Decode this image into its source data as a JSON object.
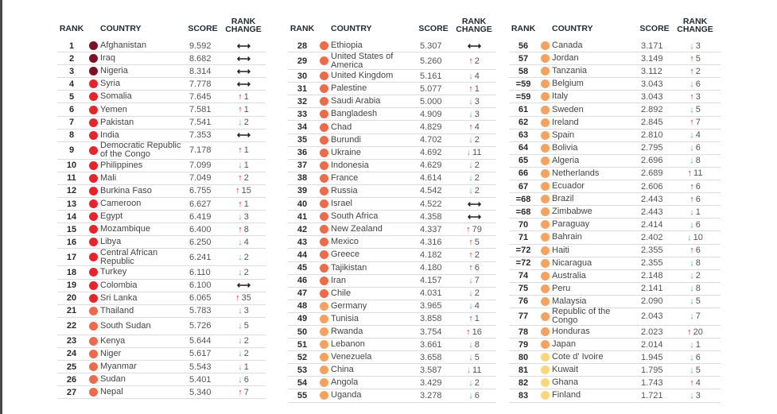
{
  "headers": {
    "rank": "RANK",
    "country": "COUNTRY",
    "score": "SCORE",
    "change_line1": "RANK",
    "change_line2": "CHANGE"
  },
  "colors": {
    "level1": "#7b1123",
    "level2": "#e8232a",
    "level3": "#ef6a4a",
    "level4": "#f6a25e",
    "level5": "#fbd77a",
    "up": "#e0262b",
    "down": "#4fb39a"
  },
  "icons": {
    "up": "up-arrow-icon",
    "down": "down-arrow-icon",
    "same": "no-change-icon"
  },
  "panels": [
    {
      "rows": [
        {
          "rank": "1",
          "country": "Afghanistan",
          "score": "9.592",
          "dir": "same",
          "change": "",
          "level": "level1"
        },
        {
          "rank": "2",
          "country": "Iraq",
          "score": "8.682",
          "dir": "same",
          "change": "",
          "level": "level1"
        },
        {
          "rank": "3",
          "country": "Nigeria",
          "score": "8.314",
          "dir": "same",
          "change": "",
          "level": "level1"
        },
        {
          "rank": "4",
          "country": "Syria",
          "score": "7.778",
          "dir": "same",
          "change": "",
          "level": "level2"
        },
        {
          "rank": "5",
          "country": "Somalia",
          "score": "7.645",
          "dir": "up",
          "change": "1",
          "level": "level2"
        },
        {
          "rank": "6",
          "country": "Yemen",
          "score": "7.581",
          "dir": "up",
          "change": "1",
          "level": "level2"
        },
        {
          "rank": "7",
          "country": "Pakistan",
          "score": "7.541",
          "dir": "down",
          "change": "2",
          "level": "level2"
        },
        {
          "rank": "8",
          "country": "India",
          "score": "7.353",
          "dir": "same",
          "change": "",
          "level": "level2"
        },
        {
          "rank": "9",
          "country": "Democratic Republic of the Congo",
          "score": "7.178",
          "dir": "up",
          "change": "1",
          "level": "level2",
          "tall": true
        },
        {
          "rank": "10",
          "country": "Philippines",
          "score": "7.099",
          "dir": "down",
          "change": "1",
          "level": "level2"
        },
        {
          "rank": "11",
          "country": "Mali",
          "score": "7.049",
          "dir": "up",
          "change": "2",
          "level": "level2"
        },
        {
          "rank": "12",
          "country": "Burkina Faso",
          "score": "6.755",
          "dir": "up",
          "change": "15",
          "level": "level2"
        },
        {
          "rank": "13",
          "country": "Cameroon",
          "score": "6.627",
          "dir": "up",
          "change": "1",
          "level": "level2"
        },
        {
          "rank": "14",
          "country": "Egypt",
          "score": "6.419",
          "dir": "down",
          "change": "3",
          "level": "level2"
        },
        {
          "rank": "15",
          "country": "Mozambique",
          "score": "6.400",
          "dir": "up",
          "change": "8",
          "level": "level2"
        },
        {
          "rank": "16",
          "country": "Libya",
          "score": "6.250",
          "dir": "down",
          "change": "4",
          "level": "level2"
        },
        {
          "rank": "17",
          "country": "Central African Republic",
          "score": "6.241",
          "dir": "down",
          "change": "2",
          "level": "level2",
          "tall": true
        },
        {
          "rank": "18",
          "country": "Turkey",
          "score": "6.110",
          "dir": "down",
          "change": "2",
          "level": "level2"
        },
        {
          "rank": "19",
          "country": "Colombia",
          "score": "6.100",
          "dir": "same",
          "change": "",
          "level": "level2"
        },
        {
          "rank": "20",
          "country": "Sri Lanka",
          "score": "6.065",
          "dir": "up",
          "change": "35",
          "level": "level2"
        },
        {
          "rank": "21",
          "country": "Thailand",
          "score": "5.783",
          "dir": "down",
          "change": "3",
          "level": "level3"
        },
        {
          "rank": "22",
          "country": "South Sudan",
          "score": "5.726",
          "dir": "down",
          "change": "5",
          "level": "level3",
          "tall": true
        },
        {
          "rank": "23",
          "country": "Kenya",
          "score": "5.644",
          "dir": "down",
          "change": "2",
          "level": "level3"
        },
        {
          "rank": "24",
          "country": "Niger",
          "score": "5.617",
          "dir": "down",
          "change": "2",
          "level": "level3"
        },
        {
          "rank": "25",
          "country": "Myanmar",
          "score": "5.543",
          "dir": "down",
          "change": "1",
          "level": "level3"
        },
        {
          "rank": "26",
          "country": "Sudan",
          "score": "5.401",
          "dir": "down",
          "change": "6",
          "level": "level3"
        },
        {
          "rank": "27",
          "country": "Nepal",
          "score": "5.340",
          "dir": "up",
          "change": "7",
          "level": "level3"
        }
      ]
    },
    {
      "rows": [
        {
          "rank": "28",
          "country": "Ethiopia",
          "score": "5.307",
          "dir": "same",
          "change": "",
          "level": "level3"
        },
        {
          "rank": "29",
          "country": "United States of America",
          "score": "5.260",
          "dir": "up",
          "change": "2",
          "level": "level3",
          "tall": true
        },
        {
          "rank": "30",
          "country": "United Kingdom",
          "score": "5.161",
          "dir": "down",
          "change": "4",
          "level": "level3"
        },
        {
          "rank": "31",
          "country": "Palestine",
          "score": "5.077",
          "dir": "up",
          "change": "1",
          "level": "level3"
        },
        {
          "rank": "32",
          "country": "Saudi Arabia",
          "score": "5.000",
          "dir": "down",
          "change": "3",
          "level": "level3"
        },
        {
          "rank": "33",
          "country": "Bangladesh",
          "score": "4.909",
          "dir": "down",
          "change": "3",
          "level": "level3"
        },
        {
          "rank": "34",
          "country": "Chad",
          "score": "4.829",
          "dir": "up",
          "change": "4",
          "level": "level3"
        },
        {
          "rank": "35",
          "country": "Burundi",
          "score": "4.702",
          "dir": "down",
          "change": "2",
          "level": "level3"
        },
        {
          "rank": "36",
          "country": "Ukraine",
          "score": "4.692",
          "dir": "down",
          "change": "11",
          "level": "level3"
        },
        {
          "rank": "37",
          "country": "Indonesia",
          "score": "4.629",
          "dir": "down",
          "change": "2",
          "level": "level3"
        },
        {
          "rank": "38",
          "country": "France",
          "score": "4.614",
          "dir": "down",
          "change": "2",
          "level": "level3"
        },
        {
          "rank": "39",
          "country": "Russia",
          "score": "4.542",
          "dir": "down",
          "change": "2",
          "level": "level3"
        },
        {
          "rank": "40",
          "country": "Israel",
          "score": "4.522",
          "dir": "same",
          "change": "",
          "level": "level3"
        },
        {
          "rank": "41",
          "country": "South Africa",
          "score": "4.358",
          "dir": "same",
          "change": "",
          "level": "level3"
        },
        {
          "rank": "42",
          "country": "New Zealand",
          "score": "4.337",
          "dir": "up",
          "change": "79",
          "level": "level3"
        },
        {
          "rank": "43",
          "country": "Mexico",
          "score": "4.316",
          "dir": "up",
          "change": "5",
          "level": "level3"
        },
        {
          "rank": "44",
          "country": "Greece",
          "score": "4.182",
          "dir": "up",
          "change": "2",
          "level": "level3"
        },
        {
          "rank": "45",
          "country": "Tajikistan",
          "score": "4.180",
          "dir": "up",
          "change": "6",
          "level": "level3"
        },
        {
          "rank": "46",
          "country": "Iran",
          "score": "4.157",
          "dir": "down",
          "change": "7",
          "level": "level3"
        },
        {
          "rank": "47",
          "country": "Chile",
          "score": "4.031",
          "dir": "down",
          "change": "2",
          "level": "level3"
        },
        {
          "rank": "48",
          "country": "Germany",
          "score": "3.965",
          "dir": "down",
          "change": "4",
          "level": "level4"
        },
        {
          "rank": "49",
          "country": "Tunisia",
          "score": "3.858",
          "dir": "up",
          "change": "1",
          "level": "level4"
        },
        {
          "rank": "50",
          "country": "Rwanda",
          "score": "3.754",
          "dir": "up",
          "change": "16",
          "level": "level4"
        },
        {
          "rank": "51",
          "country": "Lebanon",
          "score": "3.661",
          "dir": "down",
          "change": "8",
          "level": "level4"
        },
        {
          "rank": "52",
          "country": "Venezuela",
          "score": "3.658",
          "dir": "down",
          "change": "5",
          "level": "level4"
        },
        {
          "rank": "53",
          "country": "China",
          "score": "3.587",
          "dir": "down",
          "change": "11",
          "level": "level4"
        },
        {
          "rank": "54",
          "country": "Angola",
          "score": "3.429",
          "dir": "down",
          "change": "2",
          "level": "level4"
        },
        {
          "rank": "55",
          "country": "Uganda",
          "score": "3.278",
          "dir": "down",
          "change": "6",
          "level": "level4"
        }
      ]
    },
    {
      "rows": [
        {
          "rank": "56",
          "country": "Canada",
          "score": "3.171",
          "dir": "down",
          "change": "3",
          "level": "level4"
        },
        {
          "rank": "57",
          "country": "Jordan",
          "score": "3.149",
          "dir": "up",
          "change": "5",
          "level": "level4"
        },
        {
          "rank": "58",
          "country": "Tanzania",
          "score": "3.112",
          "dir": "up",
          "change": "2",
          "level": "level4"
        },
        {
          "rank": "=59",
          "country": "Belgium",
          "score": "3.043",
          "dir": "down",
          "change": "6",
          "level": "level4"
        },
        {
          "rank": "=59",
          "country": "Italy",
          "score": "3.043",
          "dir": "up",
          "change": "3",
          "level": "level4"
        },
        {
          "rank": "61",
          "country": "Sweden",
          "score": "2.892",
          "dir": "down",
          "change": "5",
          "level": "level4"
        },
        {
          "rank": "62",
          "country": "Ireland",
          "score": "2.845",
          "dir": "up",
          "change": "7",
          "level": "level4"
        },
        {
          "rank": "63",
          "country": "Spain",
          "score": "2.810",
          "dir": "down",
          "change": "4",
          "level": "level4"
        },
        {
          "rank": "64",
          "country": "Bolivia",
          "score": "2.795",
          "dir": "down",
          "change": "6",
          "level": "level4"
        },
        {
          "rank": "65",
          "country": "Algeria",
          "score": "2.696",
          "dir": "down",
          "change": "8",
          "level": "level4"
        },
        {
          "rank": "66",
          "country": "Netherlands",
          "score": "2.689",
          "dir": "up",
          "change": "11",
          "level": "level4"
        },
        {
          "rank": "67",
          "country": "Ecuador",
          "score": "2.606",
          "dir": "up",
          "change": "6",
          "level": "level4"
        },
        {
          "rank": "=68",
          "country": "Brazil",
          "score": "2.443",
          "dir": "up",
          "change": "6",
          "level": "level4"
        },
        {
          "rank": "=68",
          "country": "Zimbabwe",
          "score": "2.443",
          "dir": "down",
          "change": "1",
          "level": "level4"
        },
        {
          "rank": "70",
          "country": "Paraguay",
          "score": "2.414",
          "dir": "down",
          "change": "6",
          "level": "level4"
        },
        {
          "rank": "71",
          "country": "Bahrain",
          "score": "2.402",
          "dir": "down",
          "change": "10",
          "level": "level4"
        },
        {
          "rank": "=72",
          "country": "Haiti",
          "score": "2.355",
          "dir": "up",
          "change": "6",
          "level": "level4"
        },
        {
          "rank": "=72",
          "country": "Nicaragua",
          "score": "2.355",
          "dir": "down",
          "change": "8",
          "level": "level4"
        },
        {
          "rank": "74",
          "country": "Australia",
          "score": "2.148",
          "dir": "down",
          "change": "2",
          "level": "level4"
        },
        {
          "rank": "75",
          "country": "Peru",
          "score": "2.141",
          "dir": "down",
          "change": "8",
          "level": "level4"
        },
        {
          "rank": "76",
          "country": "Malaysia",
          "score": "2.090",
          "dir": "down",
          "change": "5",
          "level": "level4"
        },
        {
          "rank": "77",
          "country": "Republic of the Congo",
          "score": "2.043",
          "dir": "down",
          "change": "7",
          "level": "level4",
          "tall": true
        },
        {
          "rank": "78",
          "country": "Honduras",
          "score": "2.023",
          "dir": "up",
          "change": "20",
          "level": "level4"
        },
        {
          "rank": "79",
          "country": "Japan",
          "score": "2.014",
          "dir": "down",
          "change": "1",
          "level": "level4"
        },
        {
          "rank": "80",
          "country": "Cote d' Ivoire",
          "score": "1.945",
          "dir": "down",
          "change": "6",
          "level": "level5"
        },
        {
          "rank": "81",
          "country": "Kuwait",
          "score": "1.795",
          "dir": "down",
          "change": "5",
          "level": "level5"
        },
        {
          "rank": "82",
          "country": "Ghana",
          "score": "1.743",
          "dir": "up",
          "change": "4",
          "level": "level5"
        },
        {
          "rank": "83",
          "country": "Finland",
          "score": "1.721",
          "dir": "down",
          "change": "3",
          "level": "level5"
        }
      ]
    }
  ]
}
